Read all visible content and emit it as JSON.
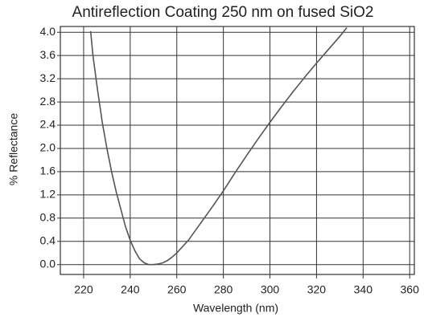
{
  "chart_data": {
    "type": "line",
    "title": "Antireflection Coating 250 nm on fused SiO2",
    "x_label": "Wavelength (nm)",
    "y_label": "% Reflectance",
    "x": [
      223,
      224,
      226,
      228,
      230,
      232,
      234,
      236,
      238,
      240,
      242,
      244,
      246,
      248,
      250,
      252,
      254,
      256,
      258,
      260,
      265,
      270,
      275,
      280,
      285,
      290,
      295,
      300,
      305,
      310,
      315,
      320,
      325,
      330,
      333
    ],
    "series": [
      {
        "name": "Reflectance",
        "color": "#555555",
        "values": [
          4.02,
          3.6,
          3.0,
          2.45,
          2.0,
          1.6,
          1.25,
          0.95,
          0.65,
          0.42,
          0.24,
          0.1,
          0.03,
          0.0,
          0.0,
          0.01,
          0.03,
          0.07,
          0.13,
          0.2,
          0.42,
          0.7,
          0.98,
          1.27,
          1.58,
          1.88,
          2.17,
          2.45,
          2.72,
          2.98,
          3.23,
          3.47,
          3.7,
          3.93,
          4.08
        ]
      }
    ],
    "xlim": [
      210,
      362
    ],
    "ylim": [
      -0.17,
      4.1
    ],
    "xticks": [
      220,
      240,
      260,
      280,
      300,
      320,
      340,
      360
    ],
    "yticks": [
      {
        "value": 0,
        "label": "0.0"
      },
      0.4,
      0.8,
      1.2,
      1.6,
      {
        "value": 2,
        "label": "2.0"
      },
      2.4,
      2.8,
      3.2,
      3.6,
      {
        "value": 4,
        "label": "4.0"
      }
    ],
    "grid": true
  }
}
